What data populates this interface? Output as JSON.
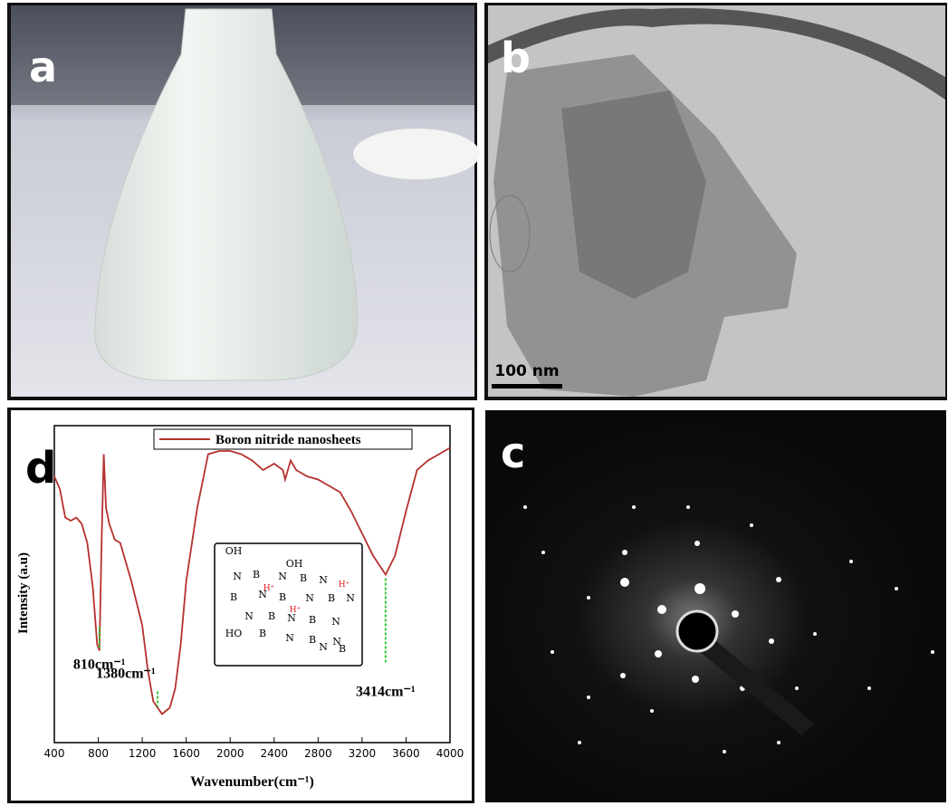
{
  "panels": {
    "a": "a",
    "b": "b",
    "c": "c",
    "d": "d",
    "scale_bar": "100 nm"
  },
  "chart_data": {
    "type": "line",
    "x": [
      400,
      450,
      500,
      550,
      600,
      650,
      700,
      750,
      790,
      810,
      830,
      850,
      870,
      900,
      950,
      1000,
      1100,
      1200,
      1250,
      1300,
      1380,
      1450,
      1500,
      1550,
      1600,
      1700,
      1800,
      1900,
      2000,
      2100,
      2200,
      2300,
      2400,
      2480,
      2500,
      2550,
      2600,
      2700,
      2800,
      2900,
      3000,
      3100,
      3200,
      3300,
      3414,
      3500,
      3600,
      3700,
      3800,
      3900,
      4000
    ],
    "series": [
      {
        "name": "Boron nitride nanosheets",
        "color": "#b5312c",
        "values": [
          84,
          80,
          71,
          70,
          71,
          69,
          63,
          49,
          31,
          29,
          63,
          91,
          74,
          69,
          64,
          63,
          51,
          37,
          23,
          13,
          9,
          11,
          17,
          31,
          51,
          74,
          91,
          92,
          92,
          91,
          89,
          86,
          88,
          86,
          83,
          89,
          86,
          84,
          83,
          81,
          79,
          73,
          66,
          59,
          53,
          59,
          73,
          86,
          89,
          91,
          93
        ]
      }
    ],
    "xlabel": "Wavenumber(cm⁻¹)",
    "ylabel": "Intensity (a.u)",
    "xlim": [
      400,
      4000
    ],
    "xticks": [
      400,
      800,
      1200,
      1600,
      2000,
      2400,
      2800,
      3200,
      3600,
      4000
    ],
    "ylim": [
      0,
      100
    ],
    "annotations": [
      {
        "text": "810cm⁻¹",
        "x": 810
      },
      {
        "text": "1380cm⁻¹",
        "x": 1380
      },
      {
        "text": "3414cm⁻¹",
        "x": 3414
      }
    ],
    "inset": {
      "atoms": [
        "OH",
        "OH",
        "N",
        "B",
        "N",
        "B",
        "N",
        "B",
        "N",
        "B",
        "N",
        "B",
        "N",
        "N",
        "B",
        "N",
        "B",
        "N",
        "HO",
        "B",
        "N",
        "B",
        "N",
        "N",
        "B"
      ],
      "protons": [
        "H⁺",
        "H⁺",
        "H⁺"
      ]
    }
  }
}
